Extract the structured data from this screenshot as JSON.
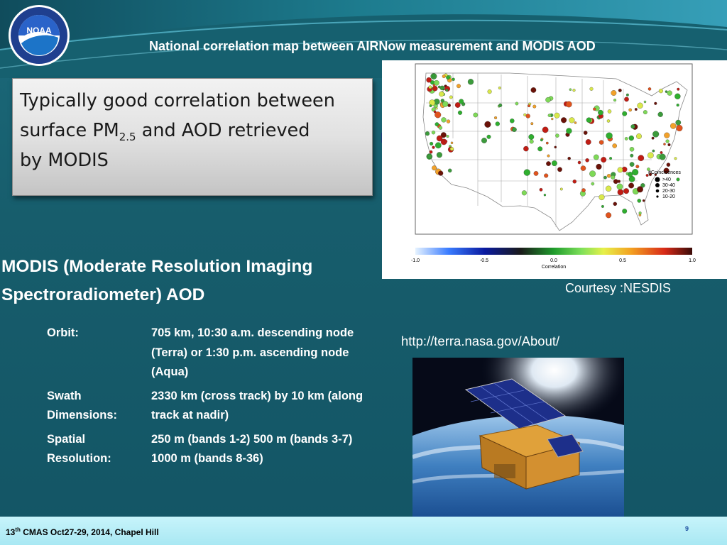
{
  "slide": {
    "title": "National correlation map between AIRNow measurement and MODIS AOD"
  },
  "logo": {
    "icon": "noaa-logo",
    "text": "NOAA",
    "ring_text": "NATIONAL OCEANIC AND ATMOSPHERIC ADMINISTRATION · U.S. DEPARTMENT OF COMMERCE"
  },
  "callout": {
    "line1": "Typically good correlation between",
    "line2_pre": "surface PM",
    "line2_sub": "2.5",
    "line2_post": " and AOD retrieved",
    "line3": "by MODIS"
  },
  "map": {
    "legend_title": "#Coincidences",
    "legend_items": [
      ">40",
      "30-40",
      "20-30",
      "10-20"
    ],
    "colorbar_ticks": [
      "-1.0",
      "-0.5",
      "0.0",
      "0.5",
      "1.0"
    ],
    "colorbar_label": "Correlation"
  },
  "courtesy": "Courtesy :NESDIS",
  "modis": {
    "heading_line1": "MODIS (Moderate Resolution Imaging",
    "heading_line2": "Spectroradiometer) AOD",
    "specs": [
      {
        "label": "Orbit:",
        "value": "705 km, 10:30 a.m. descending node (Terra) or 1:30 p.m. ascending node (Aqua)"
      },
      {
        "label": "Swath Dimensions:",
        "value": "2330 km (cross track) by 10 km (along track at nadir)"
      },
      {
        "label": "Spatial Resolution:",
        "value": "250 m (bands 1-2) 500 m (bands 3-7) 1000 m (bands 8-36)"
      }
    ]
  },
  "url": "http://terra.nasa.gov/About/",
  "footer": {
    "ordinal": "13",
    "ordinal_suffix": "th",
    "text": " CMAS Oct27-29, 2014, Chapel Hill",
    "page": "9"
  },
  "colors": {
    "background": "#175c6b",
    "footer": "#b3ecf5",
    "arrow": "#6f8fb8"
  }
}
